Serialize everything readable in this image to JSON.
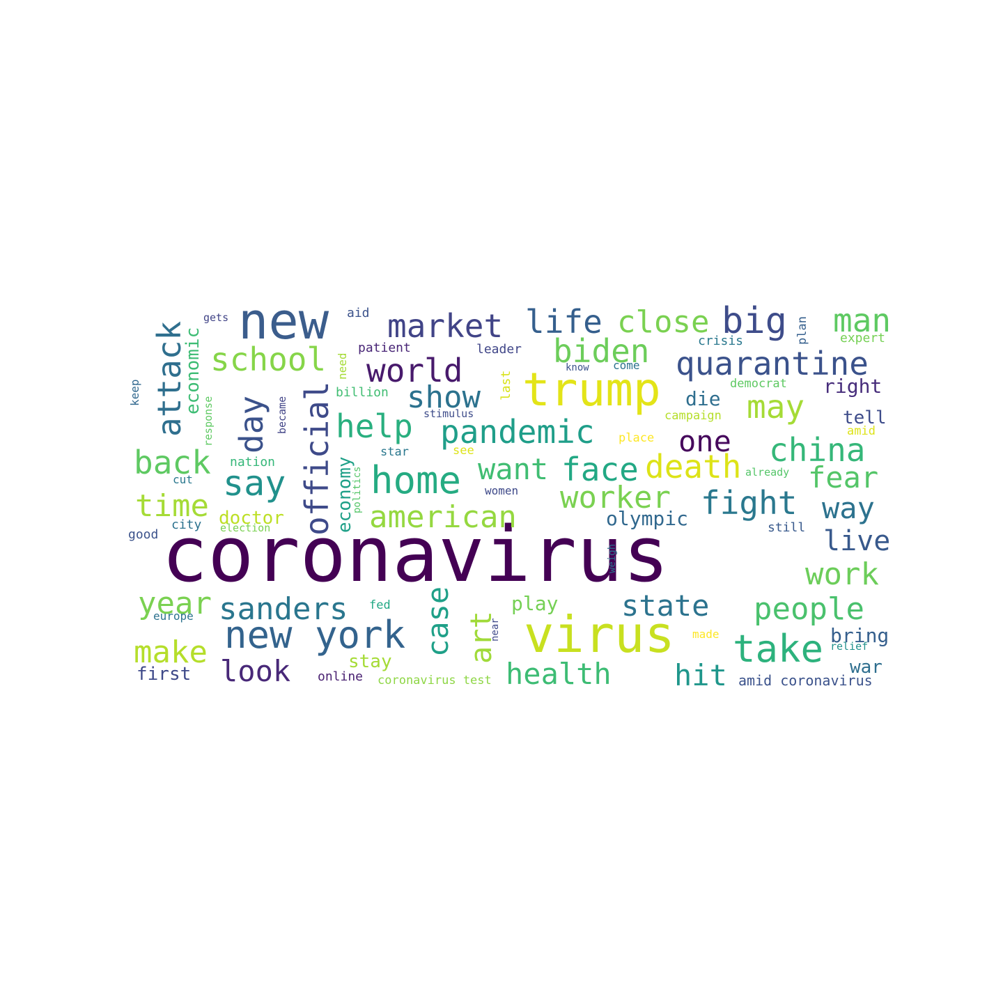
{
  "words": [
    {
      "text": "coronavirus",
      "color": "#440154"
    },
    {
      "text": "new",
      "color": "#3b5d8c"
    },
    {
      "text": "virus",
      "color": "#c8e020"
    },
    {
      "text": "trump",
      "color": "#e3e418"
    },
    {
      "text": "new york",
      "color": "#33638d"
    },
    {
      "text": "take",
      "color": "#2db27d"
    },
    {
      "text": "home",
      "color": "#25ab82"
    },
    {
      "text": "attack",
      "color": "#2f6f8e"
    },
    {
      "text": "official",
      "color": "#3e4a89"
    },
    {
      "text": "say",
      "color": "#21918c"
    },
    {
      "text": "school",
      "color": "#86d549"
    },
    {
      "text": "market",
      "color": "#414487"
    },
    {
      "text": "life",
      "color": "#355f8d"
    },
    {
      "text": "close",
      "color": "#7ad151"
    },
    {
      "text": "big",
      "color": "#3e4c8a"
    },
    {
      "text": "man",
      "color": "#5ec962"
    },
    {
      "text": "biden",
      "color": "#6ccd5a"
    },
    {
      "text": "quarantine",
      "color": "#3b528b"
    },
    {
      "text": "world",
      "color": "#481a6c"
    },
    {
      "text": "show",
      "color": "#2c728e"
    },
    {
      "text": "may",
      "color": "#a5db36"
    },
    {
      "text": "help",
      "color": "#29af7f"
    },
    {
      "text": "pandemic",
      "color": "#1f9e89"
    },
    {
      "text": "one",
      "color": "#46085c"
    },
    {
      "text": "china",
      "color": "#35b779"
    },
    {
      "text": "day",
      "color": "#3b528b"
    },
    {
      "text": "back",
      "color": "#5ec962"
    },
    {
      "text": "want",
      "color": "#40bd72"
    },
    {
      "text": "face",
      "color": "#22a884"
    },
    {
      "text": "death",
      "color": "#dde318"
    },
    {
      "text": "fear",
      "color": "#54c568"
    },
    {
      "text": "worker",
      "color": "#7ad151"
    },
    {
      "text": "fight",
      "color": "#2a788e"
    },
    {
      "text": "way",
      "color": "#2c728e"
    },
    {
      "text": "time",
      "color": "#a5db36"
    },
    {
      "text": "american",
      "color": "#95d840"
    },
    {
      "text": "olympic",
      "color": "#31688e"
    },
    {
      "text": "live",
      "color": "#38598c"
    },
    {
      "text": "work",
      "color": "#6ccd5a"
    },
    {
      "text": "year",
      "color": "#7ad151"
    },
    {
      "text": "sanders",
      "color": "#2a768e"
    },
    {
      "text": "state",
      "color": "#2c738e"
    },
    {
      "text": "people",
      "color": "#4ac16d"
    },
    {
      "text": "make",
      "color": "#b5de2b"
    },
    {
      "text": "look",
      "color": "#482878"
    },
    {
      "text": "case",
      "color": "#1fa088"
    },
    {
      "text": "art",
      "color": "#a0da39"
    },
    {
      "text": "health",
      "color": "#3dbc74"
    },
    {
      "text": "hit",
      "color": "#1f968b"
    },
    {
      "text": "bring",
      "color": "#355f8d"
    },
    {
      "text": "war",
      "color": "#2e6e8e"
    },
    {
      "text": "first",
      "color": "#3e4989"
    },
    {
      "text": "economic",
      "color": "#3dbc74"
    },
    {
      "text": "economy",
      "color": "#1fa088"
    },
    {
      "text": "doctor",
      "color": "#bddf26"
    },
    {
      "text": "play",
      "color": "#75d054"
    },
    {
      "text": "stay",
      "color": "#a5db36"
    },
    {
      "text": "online",
      "color": "#481f70"
    },
    {
      "text": "coronavirus test",
      "color": "#8ed645"
    },
    {
      "text": "amid coronavirus",
      "color": "#3b528b"
    },
    {
      "text": "die",
      "color": "#2e6e8e"
    },
    {
      "text": "right",
      "color": "#472d7b"
    },
    {
      "text": "tell",
      "color": "#3e4c8a"
    },
    {
      "text": "gets",
      "color": "#414487"
    },
    {
      "text": "aid",
      "color": "#3b528b"
    },
    {
      "text": "patient",
      "color": "#482576"
    },
    {
      "text": "leader",
      "color": "#404688"
    },
    {
      "text": "crisis",
      "color": "#2a788e"
    },
    {
      "text": "plan",
      "color": "#355f8d"
    },
    {
      "text": "expert",
      "color": "#75d054"
    },
    {
      "text": "need",
      "color": "#a5db36"
    },
    {
      "text": "know",
      "color": "#3b528b"
    },
    {
      "text": "come",
      "color": "#2c728e"
    },
    {
      "text": "last",
      "color": "#d8e219"
    },
    {
      "text": "democrat",
      "color": "#5ec962"
    },
    {
      "text": "billion",
      "color": "#40bd72"
    },
    {
      "text": "stimulus",
      "color": "#3e4c8a"
    },
    {
      "text": "campaign",
      "color": "#b5de2b"
    },
    {
      "text": "place",
      "color": "#fde725"
    },
    {
      "text": "amid",
      "color": "#dde318"
    },
    {
      "text": "see",
      "color": "#dde318"
    },
    {
      "text": "star",
      "color": "#2a788e"
    },
    {
      "text": "nation",
      "color": "#35b779"
    },
    {
      "text": "already",
      "color": "#54c568"
    },
    {
      "text": "became",
      "color": "#414487"
    },
    {
      "text": "response",
      "color": "#5ec962"
    },
    {
      "text": "keep",
      "color": "#31688e"
    },
    {
      "text": "cut",
      "color": "#2a788e"
    },
    {
      "text": "city",
      "color": "#2c728e"
    },
    {
      "text": "good",
      "color": "#3b528b"
    },
    {
      "text": "election",
      "color": "#7ad151"
    },
    {
      "text": "politics",
      "color": "#54c568"
    },
    {
      "text": "women",
      "color": "#3e4989"
    },
    {
      "text": "still",
      "color": "#38598c"
    },
    {
      "text": "weigh",
      "color": "#2c728e"
    },
    {
      "text": "fed",
      "color": "#22a884"
    },
    {
      "text": "near",
      "color": "#3e4989"
    },
    {
      "text": "europe",
      "color": "#2c728e"
    },
    {
      "text": "made",
      "color": "#fde725"
    },
    {
      "text": "relief",
      "color": "#21918c"
    }
  ]
}
